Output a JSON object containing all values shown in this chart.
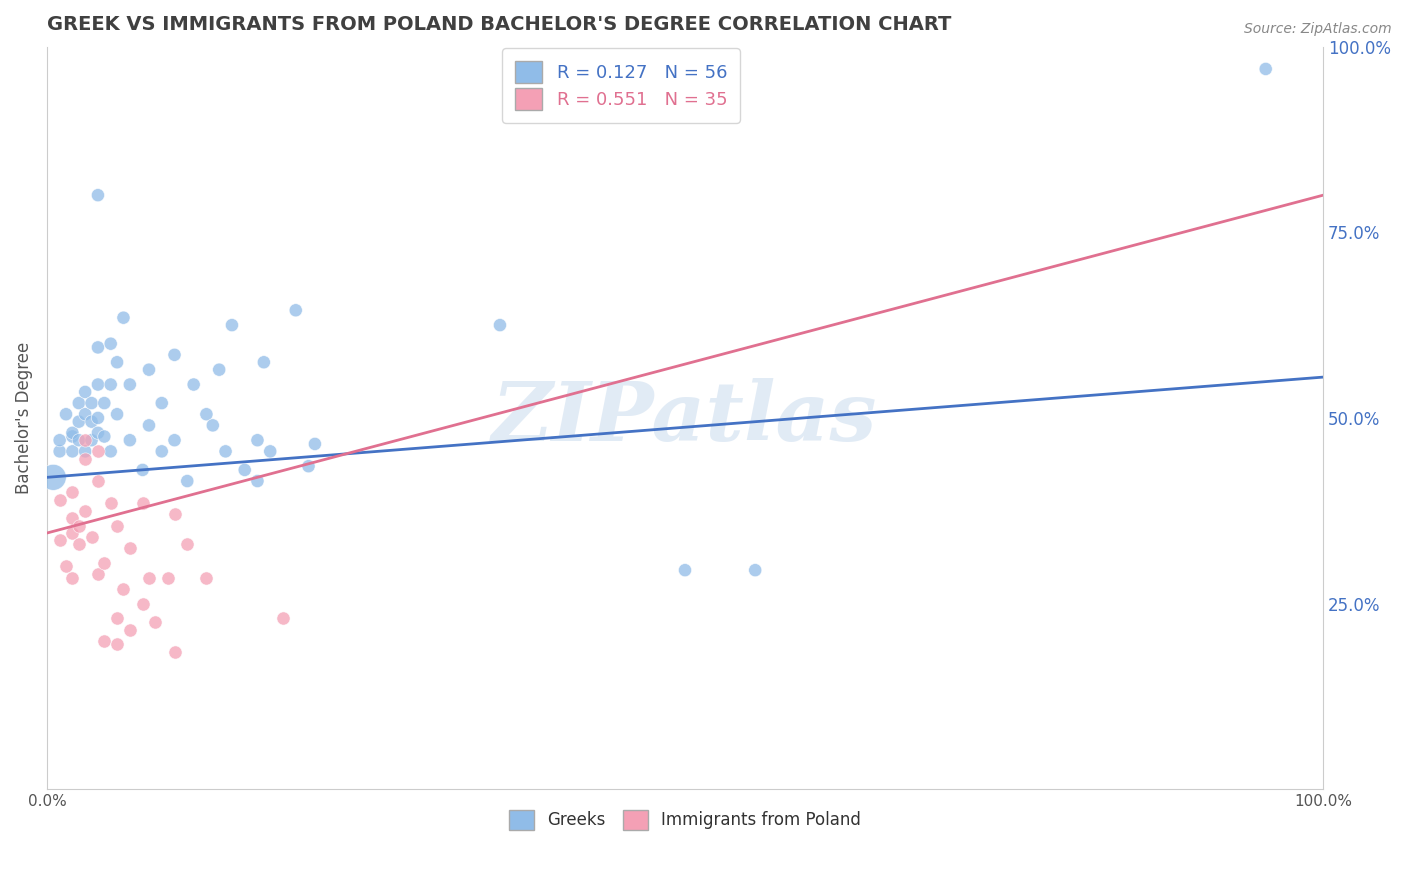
{
  "title": "GREEK VS IMMIGRANTS FROM POLAND BACHELOR'S DEGREE CORRELATION CHART",
  "source_text": "Source: ZipAtlas.com",
  "ylabel": "Bachelor's Degree",
  "xlim": [
    0.0,
    1.0
  ],
  "ylim": [
    0.0,
    1.0
  ],
  "ytick_positions": [
    0.25,
    0.5,
    0.75,
    1.0
  ],
  "ytick_labels": [
    "25.0%",
    "50.0%",
    "75.0%",
    "100.0%"
  ],
  "watermark_text": "ZIPatlas",
  "blue_color": "#90bce8",
  "pink_color": "#f4a0b5",
  "blue_line_color": "#4472c4",
  "pink_line_color": "#e07090",
  "background_color": "#ffffff",
  "grid_color": "#cccccc",
  "title_color": "#404040",
  "blue_line_x0": 0.0,
  "blue_line_y0": 0.42,
  "blue_line_x1": 1.0,
  "blue_line_y1": 0.555,
  "pink_line_x0": 0.0,
  "pink_line_y0": 0.345,
  "pink_line_x1": 1.0,
  "pink_line_y1": 0.8,
  "blue_scatter": [
    [
      0.005,
      0.42
    ],
    [
      0.01,
      0.455
    ],
    [
      0.01,
      0.47
    ],
    [
      0.015,
      0.505
    ],
    [
      0.02,
      0.455
    ],
    [
      0.02,
      0.475
    ],
    [
      0.02,
      0.48
    ],
    [
      0.025,
      0.47
    ],
    [
      0.025,
      0.495
    ],
    [
      0.025,
      0.52
    ],
    [
      0.03,
      0.505
    ],
    [
      0.03,
      0.535
    ],
    [
      0.03,
      0.455
    ],
    [
      0.035,
      0.495
    ],
    [
      0.035,
      0.47
    ],
    [
      0.035,
      0.52
    ],
    [
      0.04,
      0.48
    ],
    [
      0.04,
      0.5
    ],
    [
      0.04,
      0.545
    ],
    [
      0.04,
      0.595
    ],
    [
      0.045,
      0.475
    ],
    [
      0.045,
      0.52
    ],
    [
      0.05,
      0.6
    ],
    [
      0.05,
      0.545
    ],
    [
      0.05,
      0.455
    ],
    [
      0.055,
      0.575
    ],
    [
      0.055,
      0.505
    ],
    [
      0.06,
      0.635
    ],
    [
      0.065,
      0.545
    ],
    [
      0.065,
      0.47
    ],
    [
      0.075,
      0.43
    ],
    [
      0.08,
      0.49
    ],
    [
      0.08,
      0.565
    ],
    [
      0.09,
      0.455
    ],
    [
      0.09,
      0.52
    ],
    [
      0.1,
      0.585
    ],
    [
      0.1,
      0.47
    ],
    [
      0.11,
      0.415
    ],
    [
      0.115,
      0.545
    ],
    [
      0.125,
      0.505
    ],
    [
      0.13,
      0.49
    ],
    [
      0.135,
      0.565
    ],
    [
      0.14,
      0.455
    ],
    [
      0.145,
      0.625
    ],
    [
      0.155,
      0.43
    ],
    [
      0.165,
      0.415
    ],
    [
      0.165,
      0.47
    ],
    [
      0.17,
      0.575
    ],
    [
      0.175,
      0.455
    ],
    [
      0.195,
      0.645
    ],
    [
      0.205,
      0.435
    ],
    [
      0.21,
      0.465
    ],
    [
      0.355,
      0.625
    ],
    [
      0.5,
      0.295
    ],
    [
      0.555,
      0.295
    ],
    [
      0.955,
      0.97
    ],
    [
      0.04,
      0.8
    ]
  ],
  "pink_scatter": [
    [
      0.01,
      0.39
    ],
    [
      0.01,
      0.335
    ],
    [
      0.015,
      0.3
    ],
    [
      0.02,
      0.285
    ],
    [
      0.02,
      0.345
    ],
    [
      0.02,
      0.4
    ],
    [
      0.02,
      0.365
    ],
    [
      0.025,
      0.355
    ],
    [
      0.025,
      0.33
    ],
    [
      0.03,
      0.375
    ],
    [
      0.03,
      0.47
    ],
    [
      0.03,
      0.445
    ],
    [
      0.035,
      0.34
    ],
    [
      0.04,
      0.415
    ],
    [
      0.04,
      0.455
    ],
    [
      0.04,
      0.29
    ],
    [
      0.045,
      0.305
    ],
    [
      0.045,
      0.2
    ],
    [
      0.05,
      0.385
    ],
    [
      0.055,
      0.195
    ],
    [
      0.055,
      0.23
    ],
    [
      0.055,
      0.355
    ],
    [
      0.06,
      0.27
    ],
    [
      0.065,
      0.215
    ],
    [
      0.065,
      0.325
    ],
    [
      0.075,
      0.385
    ],
    [
      0.075,
      0.25
    ],
    [
      0.08,
      0.285
    ],
    [
      0.085,
      0.225
    ],
    [
      0.095,
      0.285
    ],
    [
      0.1,
      0.37
    ],
    [
      0.1,
      0.185
    ],
    [
      0.11,
      0.33
    ],
    [
      0.125,
      0.285
    ],
    [
      0.185,
      0.23
    ]
  ]
}
